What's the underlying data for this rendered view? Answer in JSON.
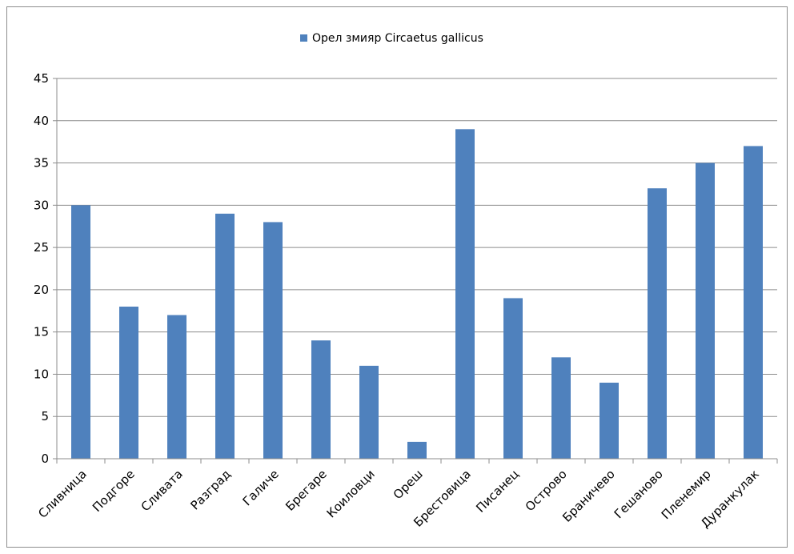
{
  "chart_data": {
    "type": "bar",
    "title": "",
    "xlabel": "",
    "ylabel": "",
    "ylim": [
      0,
      45
    ],
    "ytick_step": 5,
    "yticks": [
      "0",
      "5",
      "10",
      "15",
      "20",
      "25",
      "30",
      "35",
      "40",
      "45"
    ],
    "grid": true,
    "legend_position": "top",
    "categories": [
      "Сливница",
      "Подгоре",
      "Сливата",
      "Разград",
      "Галиче",
      "Брегаре",
      "Коиловци",
      "Ореш",
      "Брестовица",
      "Писанец",
      "Острово",
      "Браничево",
      "Гешаново",
      "Пленемир",
      "Дуранкулак"
    ],
    "series": [
      {
        "name": "Орел змияр Circaetus gallicus",
        "color": "#4f81bd",
        "values": [
          30,
          18,
          17,
          29,
          28,
          14,
          11,
          2,
          39,
          19,
          12,
          9,
          32,
          35,
          37
        ]
      }
    ]
  }
}
